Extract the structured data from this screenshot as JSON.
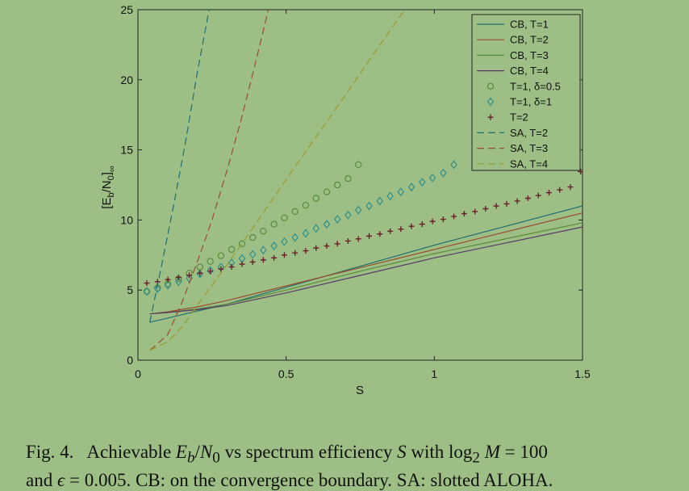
{
  "chart_data": {
    "type": "line",
    "xlabel": "S",
    "ylabel": "[E_b/N_0]_∞",
    "xlim": [
      0,
      1.5
    ],
    "ylim": [
      0,
      25
    ],
    "x_ticks": [
      "0",
      "0.5",
      "1",
      "1.5"
    ],
    "y_ticks": [
      "0",
      "5",
      "10",
      "15",
      "20",
      "25"
    ],
    "legend_position": "top-right",
    "series": [
      {
        "name": "CB, T=1",
        "style": "solid",
        "color": "#1f6e6e",
        "x": [
          0.04,
          0.1,
          0.2,
          0.3,
          0.5,
          0.75,
          1.0,
          1.25,
          1.5
        ],
        "y": [
          2.7,
          3.0,
          3.5,
          4.0,
          5.2,
          6.7,
          8.2,
          9.6,
          11.0
        ]
      },
      {
        "name": "CB, T=2",
        "style": "solid",
        "color": "#9a4b2c",
        "x": [
          0.04,
          0.1,
          0.2,
          0.3,
          0.5,
          0.75,
          1.0,
          1.25,
          1.5
        ],
        "y": [
          3.3,
          3.45,
          3.8,
          4.25,
          5.3,
          6.6,
          7.9,
          9.2,
          10.5
        ]
      },
      {
        "name": "CB, T=3",
        "style": "solid",
        "color": "#5a8a3a",
        "x": [
          0.04,
          0.1,
          0.2,
          0.3,
          0.5,
          0.75,
          1.0,
          1.25,
          1.5
        ],
        "y": [
          3.3,
          3.4,
          3.65,
          4.0,
          5.0,
          6.35,
          7.6,
          8.7,
          9.8
        ]
      },
      {
        "name": "CB, T=4",
        "style": "solid",
        "color": "#5a3a6a",
        "x": [
          0.04,
          0.1,
          0.2,
          0.3,
          0.5,
          0.75,
          1.0,
          1.25,
          1.5
        ],
        "y": [
          3.3,
          3.4,
          3.6,
          3.9,
          4.8,
          6.05,
          7.3,
          8.4,
          9.5
        ]
      },
      {
        "name": "T=1, δ=0.5",
        "style": "circle",
        "color": "#5a8a3a",
        "x": [
          0.03,
          0.066,
          0.101,
          0.137,
          0.173,
          0.209,
          0.244,
          0.28,
          0.316,
          0.351,
          0.387,
          0.423,
          0.459,
          0.494,
          0.53,
          0.566,
          0.601,
          0.637,
          0.673,
          0.709,
          0.744
        ],
        "y": [
          4.9,
          5.15,
          5.45,
          5.8,
          6.2,
          6.65,
          7.05,
          7.45,
          7.9,
          8.3,
          8.75,
          9.2,
          9.7,
          10.15,
          10.6,
          11.05,
          11.55,
          12.0,
          12.5,
          12.95,
          13.95
        ]
      },
      {
        "name": "T=1, δ=1",
        "style": "diamond",
        "color": "#2f8f8a",
        "x": [
          0.03,
          0.066,
          0.101,
          0.137,
          0.173,
          0.209,
          0.244,
          0.28,
          0.316,
          0.351,
          0.387,
          0.423,
          0.459,
          0.494,
          0.53,
          0.566,
          0.601,
          0.637,
          0.673,
          0.709,
          0.744,
          0.78,
          0.816,
          0.851,
          0.887,
          0.923,
          0.959,
          0.994,
          1.03,
          1.066
        ],
        "y": [
          4.9,
          5.1,
          5.35,
          5.6,
          5.85,
          6.15,
          6.4,
          6.65,
          6.95,
          7.25,
          7.55,
          7.85,
          8.15,
          8.45,
          8.75,
          9.05,
          9.4,
          9.7,
          10.05,
          10.35,
          10.7,
          11.0,
          11.35,
          11.7,
          12.0,
          12.35,
          12.7,
          13.0,
          13.35,
          13.95
        ]
      },
      {
        "name": "T=2",
        "style": "plus",
        "color": "#6b1f2a",
        "x": [
          0.03,
          0.066,
          0.101,
          0.137,
          0.173,
          0.209,
          0.244,
          0.28,
          0.316,
          0.351,
          0.387,
          0.423,
          0.459,
          0.494,
          0.53,
          0.566,
          0.601,
          0.637,
          0.673,
          0.709,
          0.744,
          0.78,
          0.816,
          0.851,
          0.887,
          0.923,
          0.959,
          0.994,
          1.03,
          1.066,
          1.101,
          1.137,
          1.173,
          1.209,
          1.244,
          1.28,
          1.316,
          1.351,
          1.387,
          1.423,
          1.459,
          1.494
        ],
        "y": [
          5.5,
          5.6,
          5.75,
          5.9,
          6.05,
          6.2,
          6.35,
          6.5,
          6.65,
          6.85,
          7.0,
          7.15,
          7.3,
          7.5,
          7.65,
          7.8,
          8.0,
          8.15,
          8.3,
          8.5,
          8.65,
          8.85,
          9.0,
          9.2,
          9.35,
          9.55,
          9.7,
          9.9,
          10.05,
          10.25,
          10.45,
          10.6,
          10.8,
          11.0,
          11.15,
          11.35,
          11.55,
          11.75,
          11.95,
          12.15,
          12.35,
          13.45
        ]
      },
      {
        "name": "SA, T=2",
        "style": "dashed",
        "color": "#1f6e6e",
        "x": [
          0.04,
          0.08,
          0.12,
          0.16,
          0.2,
          0.24
        ],
        "y": [
          2.7,
          6.8,
          11.0,
          15.5,
          20.5,
          25.0
        ]
      },
      {
        "name": "SA, T=3",
        "style": "dashed",
        "color": "#9a4b2c",
        "x": [
          0.04,
          0.1,
          0.15,
          0.2,
          0.25,
          0.3,
          0.35,
          0.4,
          0.44
        ],
        "y": [
          0.7,
          1.8,
          4.2,
          7.0,
          10.0,
          13.5,
          17.3,
          21.5,
          25.0
        ]
      },
      {
        "name": "SA, T=4",
        "style": "dashed",
        "color": "#9a9a2c",
        "x": [
          0.04,
          0.1,
          0.15,
          0.2,
          0.3,
          0.4,
          0.5,
          0.6,
          0.7,
          0.8,
          0.9
        ],
        "y": [
          0.7,
          1.3,
          2.4,
          3.9,
          6.8,
          9.8,
          12.9,
          15.9,
          18.9,
          22.0,
          25.0
        ]
      }
    ]
  },
  "caption": {
    "label": "Fig. 4.",
    "pre": "Achievable",
    "eb": "E",
    "eb_sub": "b",
    "slash": "/",
    "n0": "N",
    "n0_sub": "0",
    "mid": "vs spectrum efficiency",
    "s": "S",
    "with": "with",
    "log": "log",
    "log_sub": "2",
    "m": "M",
    "eq1": "= 100",
    "line2_pre": "and",
    "eps": "ϵ",
    "eq2": "= 0.005. CB: on the convergence boundary. SA: slotted ALOHA."
  }
}
